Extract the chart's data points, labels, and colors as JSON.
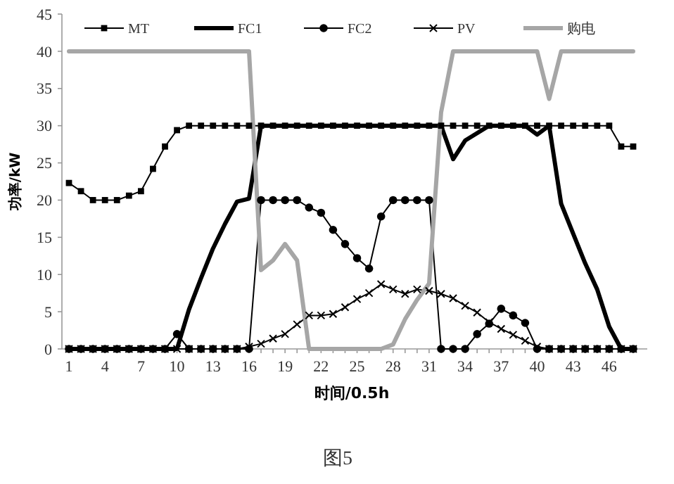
{
  "chart_data": {
    "type": "line",
    "xlabel": "时间/0.5h",
    "ylabel": "功率/kW",
    "annotations": [
      "图5"
    ],
    "categories": [
      "1",
      null,
      null,
      "4",
      null,
      null,
      "7",
      null,
      null,
      "10",
      null,
      null,
      "13",
      null,
      null,
      "16",
      null,
      null,
      "19",
      null,
      null,
      "22",
      null,
      null,
      "25",
      null,
      null,
      "28",
      null,
      null,
      "31",
      null,
      null,
      "34",
      null,
      null,
      "37",
      null,
      null,
      "40",
      null,
      null,
      "43",
      null,
      null,
      "46",
      null,
      null
    ],
    "ylim": [
      0,
      45
    ],
    "yticks": [
      0,
      5,
      10,
      15,
      20,
      25,
      30,
      35,
      40,
      45
    ],
    "grid": false,
    "legend": "top",
    "line_style": "solid",
    "series": [
      {
        "name": "MT",
        "color": "#000000",
        "marker": "square",
        "values": [
          22.3,
          21.2,
          20,
          20,
          20,
          20.6,
          21.2,
          24.2,
          27.2,
          29.4,
          30,
          30,
          30,
          30,
          30,
          30,
          30,
          30,
          30,
          30,
          30,
          30,
          30,
          30,
          30,
          30,
          30,
          30,
          30,
          30,
          30,
          30,
          30,
          30,
          30,
          30,
          30,
          30,
          30,
          30,
          30,
          30,
          30,
          30,
          30,
          30,
          27.2,
          27.2
        ]
      },
      {
        "name": "FC1",
        "color": "#000000",
        "marker": "none",
        "values": [
          0,
          0,
          0,
          0,
          0,
          0,
          0,
          0,
          0,
          0,
          5.3,
          9.5,
          13.5,
          16.8,
          19.8,
          20.2,
          30,
          30,
          30,
          30,
          30,
          30,
          30,
          30,
          30,
          30,
          30,
          30,
          30,
          30,
          30,
          30,
          25.5,
          28,
          29,
          30,
          30,
          30,
          30,
          28.8,
          30,
          19.5,
          15.5,
          11.5,
          8,
          3,
          0,
          0
        ]
      },
      {
        "name": "FC2",
        "color": "#000000",
        "marker": "circle",
        "values": [
          0,
          0,
          0,
          0,
          0,
          0,
          0,
          0,
          0,
          2,
          0,
          0,
          0,
          0,
          0,
          0,
          20,
          20,
          20,
          20,
          19,
          18.3,
          16,
          14.1,
          12.2,
          10.8,
          17.8,
          20,
          20,
          20,
          20,
          0,
          0,
          0,
          2,
          3.4,
          5.4,
          4.5,
          3.5,
          0,
          0,
          0,
          0,
          0,
          0,
          0,
          0,
          0
        ]
      },
      {
        "name": "PV",
        "color": "#000000",
        "marker": "cross",
        "values": [
          0,
          0,
          0,
          0,
          0,
          0,
          0,
          0,
          0,
          0,
          0,
          0,
          0,
          0,
          0,
          0.3,
          0.7,
          1.4,
          2,
          3.3,
          4.5,
          4.5,
          4.7,
          5.6,
          6.7,
          7.5,
          8.7,
          8,
          7.4,
          8,
          7.8,
          7.4,
          6.8,
          5.8,
          4.9,
          3.6,
          2.7,
          1.9,
          1.1,
          0.3,
          0,
          0,
          0,
          0,
          0,
          0,
          0,
          0
        ]
      },
      {
        "name": "购电",
        "color": "#a6a6a6",
        "marker": "none",
        "values": [
          40,
          40,
          40,
          40,
          40,
          40,
          40,
          40,
          40,
          40,
          40,
          40,
          40,
          40,
          40,
          40,
          10.6,
          11.9,
          14.1,
          11.9,
          0,
          0,
          0,
          0,
          0,
          0,
          0,
          0.6,
          4,
          6.6,
          8.8,
          31.8,
          40,
          40,
          40,
          40,
          40,
          40,
          40,
          40,
          33.6,
          40,
          40,
          40,
          40,
          40,
          40,
          40
        ]
      }
    ]
  }
}
